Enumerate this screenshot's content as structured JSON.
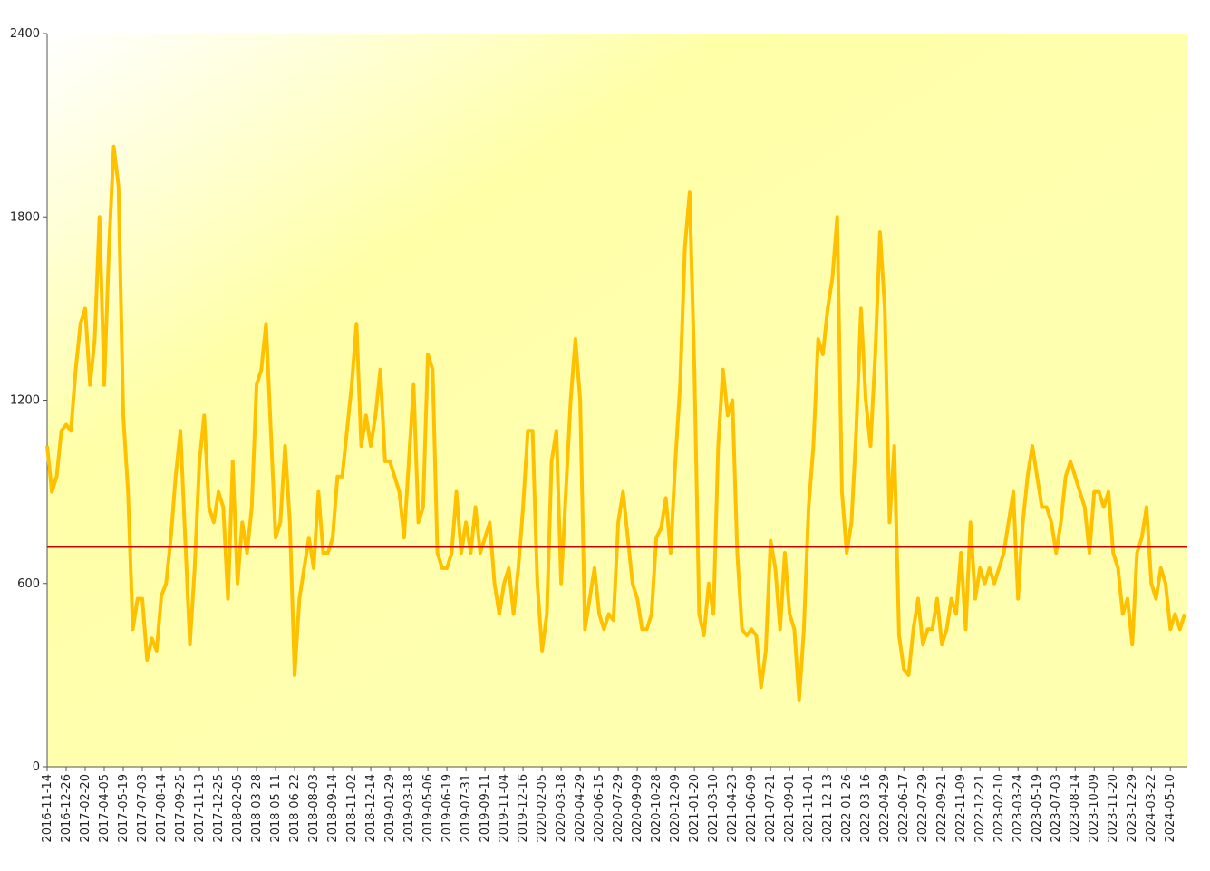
{
  "chart_data": {
    "type": "line",
    "categories": [
      "2016-11-14",
      null,
      null,
      null,
      "2016-12-26",
      null,
      null,
      null,
      "2017-02-20",
      null,
      null,
      null,
      "2017-04-05",
      null,
      null,
      null,
      "2017-05-19",
      null,
      null,
      null,
      "2017-07-03",
      null,
      null,
      null,
      "2017-08-14",
      null,
      null,
      null,
      "2017-09-25",
      null,
      null,
      null,
      "2017-11-13",
      null,
      null,
      null,
      "2017-12-25",
      null,
      null,
      null,
      "2018-02-05",
      null,
      null,
      null,
      "2018-03-28",
      null,
      null,
      null,
      "2018-05-11",
      null,
      null,
      null,
      "2018-06-22",
      null,
      null,
      null,
      "2018-08-03",
      null,
      null,
      null,
      "2018-09-14",
      null,
      null,
      null,
      "2018-11-02",
      null,
      null,
      null,
      "2018-12-14",
      null,
      null,
      null,
      "2019-01-29",
      null,
      null,
      null,
      "2019-03-18",
      null,
      null,
      null,
      "2019-05-06",
      null,
      null,
      null,
      "2019-06-19",
      null,
      null,
      null,
      "2019-07-31",
      null,
      null,
      null,
      "2019-09-11",
      null,
      null,
      null,
      "2019-11-04",
      null,
      null,
      null,
      "2019-12-16",
      null,
      null,
      null,
      "2020-02-05",
      null,
      null,
      null,
      "2020-03-18",
      null,
      null,
      null,
      "2020-04-29",
      null,
      null,
      null,
      "2020-06-15",
      null,
      null,
      null,
      "2020-07-29",
      null,
      null,
      null,
      "2020-09-09",
      null,
      null,
      null,
      "2020-10-28",
      null,
      null,
      null,
      "2020-12-09",
      null,
      null,
      null,
      "2021-01-20",
      null,
      null,
      null,
      "2021-03-10",
      null,
      null,
      null,
      "2021-04-23",
      null,
      null,
      null,
      "2021-06-09",
      null,
      null,
      null,
      "2021-07-21",
      null,
      null,
      null,
      "2021-09-01",
      null,
      null,
      null,
      "2021-11-01",
      null,
      null,
      null,
      "2021-12-13",
      null,
      null,
      null,
      "2022-01-26",
      null,
      null,
      null,
      "2022-03-16",
      null,
      null,
      null,
      "2022-04-29",
      null,
      null,
      null,
      "2022-06-17",
      null,
      null,
      null,
      "2022-07-29",
      null,
      null,
      null,
      "2022-09-21",
      null,
      null,
      null,
      "2022-11-09",
      null,
      null,
      null,
      "2022-12-21",
      null,
      null,
      null,
      "2023-02-10",
      null,
      null,
      null,
      "2023-03-24",
      null,
      null,
      null,
      "2023-05-19",
      null,
      null,
      null,
      "2023-07-03",
      null,
      null,
      null,
      "2023-08-14",
      null,
      null,
      null,
      "2023-10-09",
      null,
      null,
      null,
      "2023-11-20",
      null,
      null,
      null,
      "2023-12-29",
      null,
      null,
      null,
      "2024-03-22",
      null,
      null,
      null,
      "2024-05-10",
      null,
      null,
      null
    ],
    "series": [
      {
        "color": "#ffc000",
        "values": [
          1050,
          900,
          950,
          1100,
          1120,
          1100,
          1300,
          1450,
          1500,
          1250,
          1400,
          1800,
          1250,
          1700,
          2030,
          1900,
          1150,
          900,
          450,
          550,
          550,
          350,
          420,
          380,
          560,
          600,
          750,
          950,
          1100,
          750,
          400,
          650,
          1000,
          1150,
          850,
          800,
          900,
          850,
          550,
          1000,
          600,
          800,
          700,
          850,
          1250,
          1300,
          1450,
          1100,
          750,
          800,
          1050,
          800,
          300,
          550,
          650,
          750,
          650,
          900,
          700,
          700,
          750,
          950,
          950,
          1100,
          1250,
          1450,
          1050,
          1150,
          1050,
          1150,
          1300,
          1000,
          1000,
          950,
          900,
          750,
          1000,
          1250,
          800,
          850,
          1350,
          1300,
          700,
          650,
          650,
          700,
          900,
          700,
          800,
          700,
          850,
          700,
          750,
          800,
          600,
          500,
          600,
          650,
          500,
          650,
          850,
          1100,
          1100,
          600,
          380,
          500,
          1000,
          1100,
          600,
          900,
          1200,
          1400,
          1200,
          450,
          550,
          650,
          500,
          450,
          500,
          480,
          800,
          900,
          750,
          600,
          550,
          450,
          450,
          500,
          750,
          780,
          880,
          700,
          1000,
          1250,
          1700,
          1880,
          1300,
          500,
          430,
          600,
          500,
          1050,
          1300,
          1150,
          1200,
          700,
          450,
          430,
          450,
          430,
          260,
          380,
          740,
          650,
          450,
          700,
          500,
          450,
          220,
          450,
          850,
          1050,
          1400,
          1350,
          1500,
          1600,
          1800,
          900,
          700,
          800,
          1100,
          1500,
          1200,
          1050,
          1350,
          1750,
          1500,
          800,
          1050,
          430,
          320,
          300,
          450,
          550,
          400,
          450,
          450,
          550,
          400,
          450,
          550,
          500,
          700,
          450,
          800,
          550,
          650,
          600,
          650,
          600,
          650,
          700,
          800,
          900,
          550,
          800,
          950,
          1050,
          950,
          850,
          850,
          800,
          700,
          800,
          950,
          1000,
          950,
          900,
          850,
          700,
          900,
          900,
          850,
          900,
          700,
          650,
          500,
          550,
          400,
          700,
          750,
          850,
          600,
          550,
          650,
          600,
          450,
          500,
          450,
          500
        ]
      }
    ],
    "reference_line": {
      "value": 720,
      "color": "#cc0000"
    },
    "ylim": [
      0,
      2400
    ],
    "yticks": [
      0,
      600,
      1200,
      1800,
      2400
    ]
  }
}
